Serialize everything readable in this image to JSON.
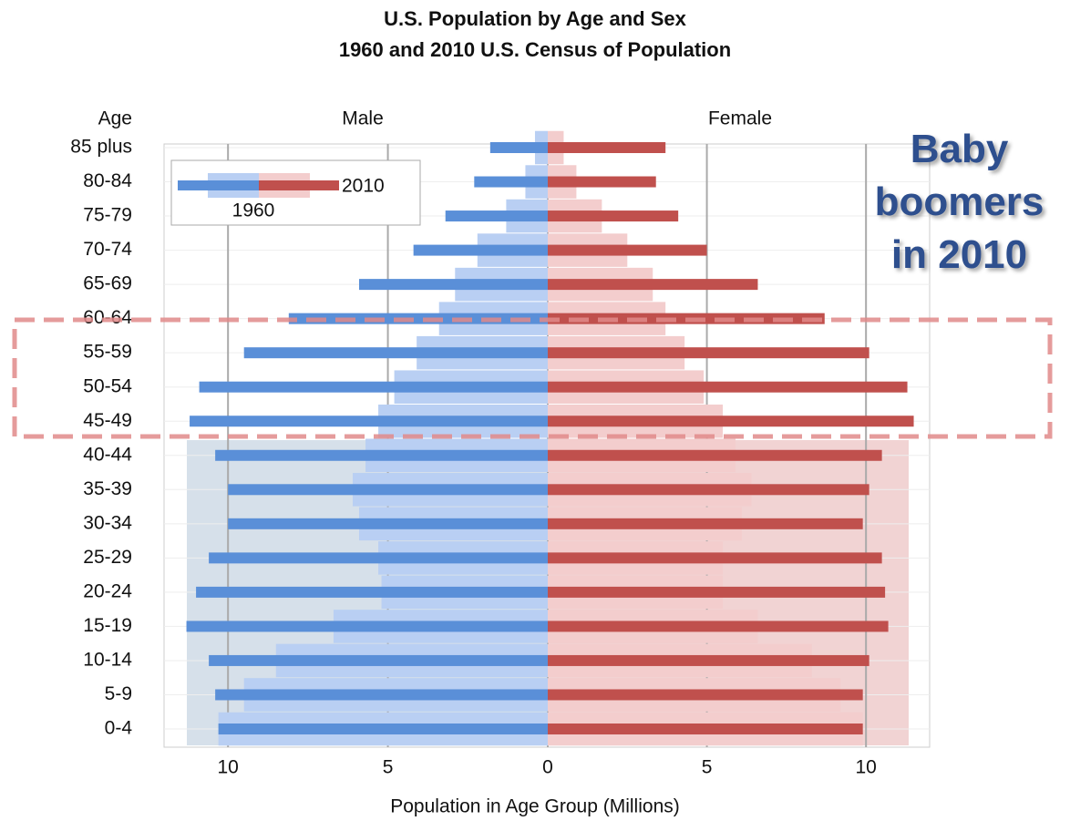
{
  "chart_data": {
    "type": "population-pyramid",
    "title": "U.S. Population by Age and Sex",
    "subtitle": "1960 and 2010 U.S. Census of Population",
    "y_header": "Age",
    "xlabel": "Population in Age Group (Millions)",
    "annotation": "Baby boomers in 2010",
    "categories": [
      "0-4",
      "5-9",
      "10-14",
      "15-19",
      "20-24",
      "25-29",
      "30-34",
      "35-39",
      "40-44",
      "45-49",
      "50-54",
      "55-59",
      "60-64",
      "65-69",
      "70-74",
      "75-79",
      "80-84",
      "85 plus"
    ],
    "panels": [
      {
        "title": "Male",
        "xlim": [
          12,
          0
        ],
        "xticks": [
          10,
          5
        ],
        "series": [
          {
            "name": "1960",
            "color": "#b9cff3",
            "values": [
              10.3,
              9.5,
              8.5,
              6.7,
              5.2,
              5.3,
              5.9,
              6.1,
              5.7,
              5.3,
              4.8,
              4.1,
              3.4,
              2.9,
              2.2,
              1.3,
              0.7,
              0.4
            ]
          },
          {
            "name": "2010",
            "color": "#5a8fd8",
            "values": [
              10.3,
              10.4,
              10.6,
              11.3,
              11.0,
              10.6,
              10.0,
              10.0,
              10.4,
              11.2,
              10.9,
              9.5,
              8.1,
              5.9,
              4.2,
              3.2,
              2.3,
              1.8
            ]
          }
        ]
      },
      {
        "title": "Female",
        "xlim": [
          0,
          12
        ],
        "xticks": [
          0,
          5,
          10
        ],
        "series": [
          {
            "name": "1960",
            "color": "#f3cdcd",
            "values": [
              9.9,
              9.2,
              8.3,
              6.6,
              5.5,
              5.5,
              6.1,
              6.4,
              5.9,
              5.5,
              4.9,
              4.3,
              3.7,
              3.3,
              2.5,
              1.7,
              0.9,
              0.5
            ]
          },
          {
            "name": "2010",
            "color": "#c0504d",
            "values": [
              9.9,
              9.9,
              10.1,
              10.7,
              10.6,
              10.5,
              9.9,
              10.1,
              10.5,
              11.5,
              11.3,
              10.1,
              8.7,
              6.6,
              5.0,
              4.1,
              3.4,
              3.7
            ]
          }
        ]
      }
    ]
  }
}
